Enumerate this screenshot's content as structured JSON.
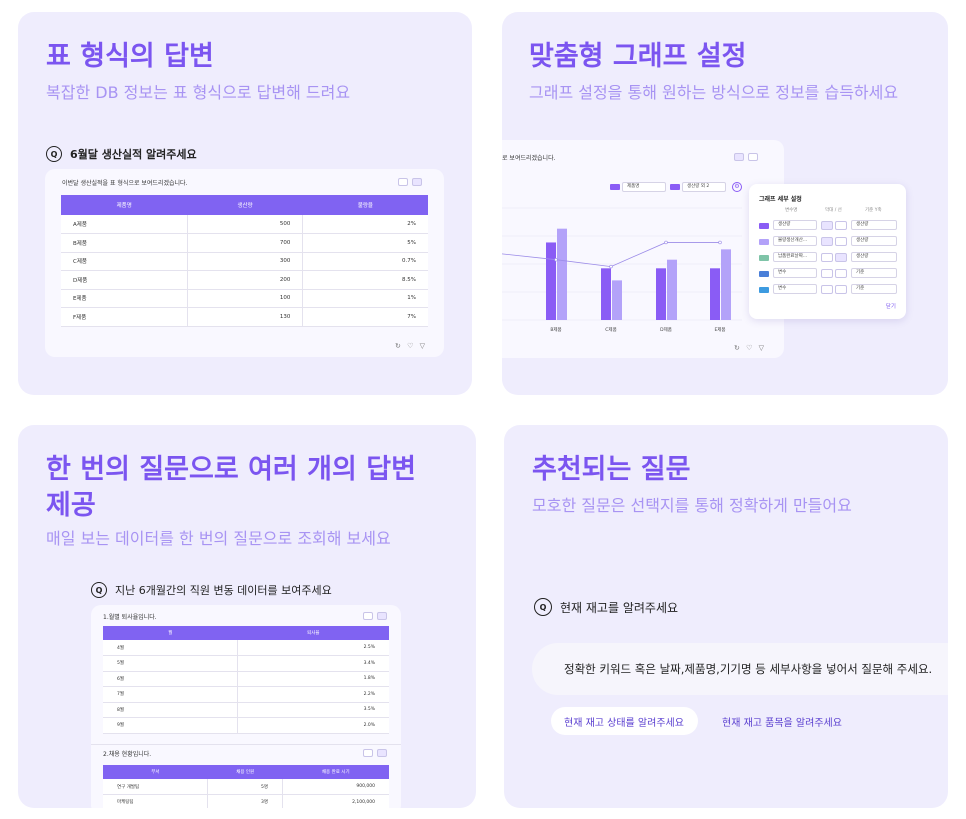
{
  "card1": {
    "title": "표 형식의 답변",
    "subtitle": "복잡한 DB 정보는 표 형식으로 답변해 드려요",
    "question": "6월달 생산실적 알려주세요",
    "answer_intro": "이번달 생산실적을 표 형식으로 보여드리겠습니다.",
    "headers": [
      "제품명",
      "생산량",
      "불량율"
    ],
    "rows": [
      [
        "A제품",
        "500",
        "2%"
      ],
      [
        "B제품",
        "700",
        "5%"
      ],
      [
        "C제품",
        "300",
        "0.7%"
      ],
      [
        "D제품",
        "200",
        "8.5%"
      ],
      [
        "E제품",
        "100",
        "1%"
      ],
      [
        "F제품",
        "130",
        "7%"
      ]
    ]
  },
  "card2": {
    "title": "맞춤형 그래프 설정",
    "subtitle": "그래프 설정을 통해 원하는 방식으로 정보를 습득하세요",
    "answer_intro": "로 보여드리겠습니다.",
    "x_select": "제품명",
    "y_select": "생산량 외 2",
    "settings_title": "그래프 세부 설정",
    "settings_col_headers": [
      "변수명",
      "막대 / 선",
      "기준 Y축"
    ],
    "settings_rows": [
      {
        "var": "생산량",
        "axis": "생산량"
      },
      {
        "var": "불량생산개산...",
        "axis": "생산량"
      },
      {
        "var": "납품완료날짜...",
        "axis": "생산량"
      },
      {
        "var": "변수",
        "axis": "기준"
      },
      {
        "var": "변수",
        "axis": "기준"
      }
    ],
    "close_label": "닫기",
    "colors": {
      "bar_dark": "#8a5cf5",
      "bar_light": "#b3a2f9",
      "line": "#9c8ce8"
    }
  },
  "chart_data": {
    "type": "bar",
    "categories": [
      "",
      "B제품",
      "C제품",
      "D제품",
      "E제품"
    ],
    "series": [
      {
        "values": [
          72,
          90,
          60,
          60,
          60
        ]
      },
      {
        "values": [
          0,
          106,
          46,
          70,
          82
        ]
      },
      {
        "values": [
          78,
          70,
          62,
          90,
          90
        ]
      }
    ],
    "ylim": [
      0,
      130
    ]
  },
  "card3": {
    "title": "한 번의 질문으로 여러 개의 답변 제공",
    "subtitle": "매일 보는 데이터를 한 번의 질문으로 조회해 보세요",
    "question": "지난 6개월간의 직원 변동 데이터를 보여주세요",
    "answer1": "1.월별 퇴사율입니다.",
    "t1_headers": [
      "월",
      "퇴사율"
    ],
    "t1_rows": [
      [
        "4월",
        "2.5%"
      ],
      [
        "5월",
        "3.4%"
      ],
      [
        "6월",
        "1.8%"
      ],
      [
        "7월",
        "2.2%"
      ],
      [
        "8월",
        "3.5%"
      ],
      [
        "9월",
        "2.0%"
      ]
    ],
    "answer2": "2.채용 현황입니다.",
    "t2_headers": [
      "부서",
      "채용 인원",
      "채용 완료 시기"
    ],
    "t2_rows": [
      [
        "연구 개발팀",
        "5명",
        "900,000"
      ],
      [
        "마케팅팀",
        "3명",
        "2,100,000"
      ]
    ]
  },
  "card4": {
    "title": "추천되는 질문",
    "subtitle": "모호한 질문은 선택지를 통해 정확하게 만들어요",
    "question": "현재 재고를 알려주세요",
    "answer": "정확한 키워드 혹은 날짜,제품명,기기명 등 세부사항을 넣어서 질문해 주세요.",
    "chip1": "현재 재고 상태를 알려주세요",
    "chip2": "현재 재고 품목을 알려주세요"
  }
}
